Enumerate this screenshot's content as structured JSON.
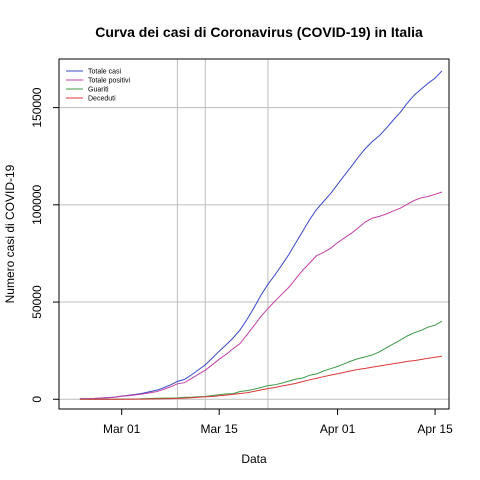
{
  "chart_data": {
    "type": "line",
    "title": "Curva dei casi di Coronavirus (COVID-19) in Italia",
    "xlabel": "Data",
    "ylabel": "Numero casi di COVID-19",
    "x_start": "2020-02-24",
    "x_ticks": [
      {
        "label": "Mar 01",
        "date": "2020-03-01"
      },
      {
        "label": "Mar 15",
        "date": "2020-03-15"
      },
      {
        "label": "Apr 01",
        "date": "2020-04-01"
      },
      {
        "label": "Apr 15",
        "date": "2020-04-15"
      }
    ],
    "y_ticks": [
      {
        "label": "0",
        "value": 0
      },
      {
        "label": "50000",
        "value": 50000
      },
      {
        "label": "100000",
        "value": 100000
      },
      {
        "label": "150000",
        "value": 150000
      }
    ],
    "xlim": [
      "2020-02-21",
      "2020-04-17"
    ],
    "ylim": [
      -5000,
      175000
    ],
    "vertical_lines": [
      "2020-03-09",
      "2020-03-13",
      "2020-03-22"
    ],
    "grid": "horizontal lines at y ticks",
    "legend_position": "top-left",
    "series": [
      {
        "name": "Totale casi",
        "color": "#3b48c8",
        "values": [
          229,
          322,
          400,
          650,
          888,
          1128,
          1694,
          2036,
          2502,
          3089,
          3858,
          4636,
          5883,
          7375,
          9172,
          10149,
          12462,
          15113,
          17660,
          21157,
          24747,
          27980,
          31506,
          35713,
          41035,
          47021,
          53578,
          59138,
          63927,
          69176,
          74386,
          80539,
          86498,
          92472,
          97689,
          101739,
          105792,
          110574,
          115242,
          119827,
          124632,
          128948,
          132547,
          135586,
          139422,
          143626,
          147577,
          152271,
          156363,
          159516,
          162488,
          165155,
          168941
        ]
      },
      {
        "name": "Totale positivi",
        "color": "#c43fa4",
        "values": [
          221,
          311,
          385,
          588,
          821,
          1049,
          1577,
          1835,
          2263,
          2706,
          3296,
          3916,
          5061,
          6387,
          7985,
          8514,
          10590,
          12839,
          14955,
          17750,
          20603,
          23073,
          26062,
          28710,
          33190,
          37860,
          42681,
          46638,
          50418,
          54030,
          57521,
          62013,
          66414,
          70065,
          73880,
          75528,
          77635,
          80572,
          83049,
          85388,
          88274,
          91246,
          93187,
          94067,
          95262,
          96877,
          98273,
          100269,
          102253,
          103616,
          104291,
          105418,
          106607
        ]
      },
      {
        "name": "Guariti",
        "color": "#3e9b4a",
        "values": [
          1,
          1,
          3,
          45,
          46,
          46,
          83,
          149,
          160,
          276,
          414,
          523,
          589,
          622,
          724,
          1004,
          1045,
          1258,
          1439,
          1966,
          2335,
          2749,
          2941,
          4025,
          4440,
          5129,
          6072,
          7024,
          7432,
          8326,
          9362,
          10361,
          10950,
          12384,
          13030,
          14620,
          15729,
          16847,
          18278,
          19758,
          20996,
          21815,
          22837,
          24392,
          26491,
          28470,
          30455,
          32534,
          34211,
          35435,
          37130,
          38092,
          40164
        ]
      },
      {
        "name": "Deceduti",
        "color": "#d9393a",
        "values": [
          7,
          10,
          12,
          17,
          21,
          29,
          34,
          52,
          79,
          107,
          148,
          197,
          233,
          366,
          463,
          631,
          827,
          1016,
          1266,
          1441,
          1809,
          2158,
          2503,
          2978,
          3405,
          4032,
          4825,
          5476,
          6077,
          6820,
          7503,
          8165,
          9134,
          10023,
          10779,
          11591,
          12428,
          13155,
          13915,
          14681,
          15362,
          15887,
          16523,
          17127,
          17669,
          18279,
          18849,
          19468,
          19899,
          20465,
          21067,
          21645,
          22170
        ]
      }
    ]
  }
}
